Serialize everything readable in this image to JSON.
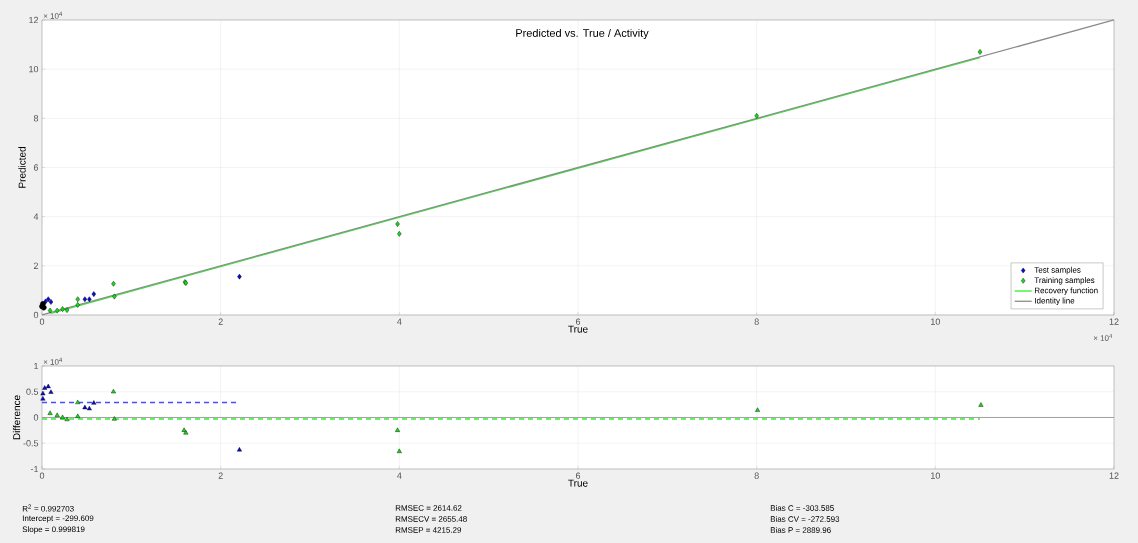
{
  "chart_data": [
    {
      "type": "scatter",
      "title": "Predicted vs. True / Activity",
      "xlabel": "True",
      "ylabel": "Predicted",
      "annotations": [
        "× 10$^{4}$",
        "× 10$^{4}$"
      ],
      "xlim": [
        0,
        12
      ],
      "ylim": [
        0,
        12
      ],
      "xticks": [
        0,
        2,
        4,
        6,
        8,
        10,
        12
      ],
      "yticks": [
        0,
        2,
        4,
        6,
        8,
        10,
        12
      ],
      "grid": true,
      "legend": "bottom right",
      "series": [
        {
          "name": "Test samples",
          "marker": "diamond",
          "color": "#0a0ad2",
          "x": [
            0.04,
            0.07,
            0.1,
            0.48,
            0.53,
            0.58,
            2.21
          ],
          "values": [
            0.55,
            0.64,
            0.53,
            0.64,
            0.64,
            0.85,
            1.56
          ]
        },
        {
          "name": "Training samples",
          "marker": "diamond",
          "color": "#14dc14",
          "x": [
            0.09,
            0.17,
            0.23,
            0.28,
            0.4,
            0.4,
            0.8,
            0.81,
            1.6,
            1.61,
            3.98,
            4.0,
            8.0,
            10.5
          ],
          "values": [
            0.18,
            0.18,
            0.24,
            0.2,
            0.64,
            0.41,
            1.27,
            0.75,
            1.34,
            1.3,
            3.7,
            3.3,
            8.1,
            10.7
          ]
        },
        {
          "name": "Recovery function",
          "type": "line",
          "color": "#33ee33",
          "line_style": "solid",
          "x": [
            0.1,
            10.5
          ],
          "values": [
            0.07,
            10.47
          ]
        },
        {
          "name": "Identity line",
          "type": "line",
          "color": "#8c8c8c",
          "line_style": "solid",
          "x": [
            0,
            12
          ],
          "values": [
            0,
            12
          ]
        },
        {
          "marker": "circle",
          "color": "#000000",
          "x": [
            0.0,
            0.01,
            0.02
          ],
          "values": [
            0.35,
            0.45,
            0.3
          ]
        }
      ]
    },
    {
      "type": "scatter",
      "xlabel": "True",
      "ylabel": "Difference",
      "annotations": [
        "× 10$^{4}$",
        "R$^{2}$ = 0.992703",
        "Intercept = -299.609",
        "Slope = 0.999819",
        "RMSEC = 2614.62",
        "RMSECV = 2655.48",
        "RMSEP = 4215.29",
        "Bias C = -303.585",
        "Bias CV = -272.593",
        "Bias P = 2889.96"
      ],
      "xlim": [
        0,
        12
      ],
      "ylim": [
        -1,
        1
      ],
      "xticks": [
        0,
        2,
        4,
        6,
        8,
        10,
        12
      ],
      "yticks": [
        -1,
        -0.5,
        0,
        0.5,
        1
      ],
      "grid": true,
      "ref_lines": [
        {
          "axis": "y",
          "value": 0,
          "color": "#8c8c8c"
        }
      ],
      "series": [
        {
          "marker": "triangle",
          "color": "#0a0ad2",
          "x": [
            0.01,
            0.01,
            0.03,
            0.07,
            0.1,
            0.48,
            0.53,
            0.58,
            2.21
          ],
          "values": [
            0.36,
            0.46,
            0.57,
            0.6,
            0.49,
            0.19,
            0.17,
            0.28,
            -0.63
          ]
        },
        {
          "marker": "triangle",
          "color": "#14dc14",
          "x": [
            0.09,
            0.17,
            0.23,
            0.28,
            0.4,
            0.4,
            0.8,
            0.81,
            1.59,
            1.61,
            3.98,
            4.0,
            8.01,
            10.51
          ],
          "values": [
            0.08,
            0.04,
            0.0,
            -0.04,
            0.29,
            0.02,
            0.5,
            -0.03,
            -0.25,
            -0.3,
            -0.25,
            -0.66,
            0.14,
            0.24
          ]
        },
        {
          "type": "line",
          "line_style": "dashed",
          "color": "#4b4bff",
          "x": [
            0,
            2.2
          ],
          "values": [
            0.29,
            0.29
          ]
        },
        {
          "type": "line",
          "line_style": "dashed",
          "color": "#33ee33",
          "x": [
            0,
            10.5
          ],
          "values": [
            -0.03,
            -0.03
          ]
        }
      ]
    }
  ]
}
